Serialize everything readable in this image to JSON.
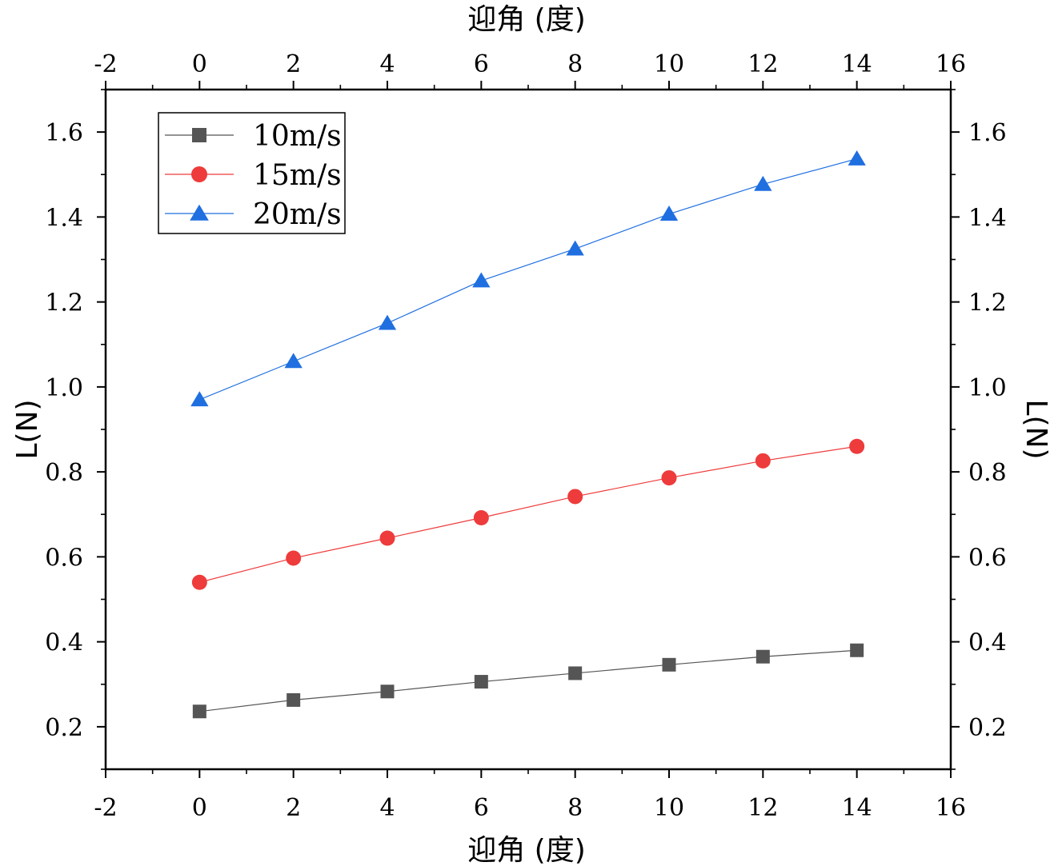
{
  "chart_data": {
    "type": "line",
    "title": "",
    "xlabel": "迎角 (度)",
    "ylabel": "L(N)",
    "xlim": [
      -2,
      16
    ],
    "ylim": [
      0.1,
      1.7
    ],
    "xticks": [
      -2,
      0,
      2,
      4,
      6,
      8,
      10,
      12,
      14,
      16
    ],
    "yticks": [
      0.2,
      0.4,
      0.6,
      0.8,
      1.0,
      1.2,
      1.4,
      1.6
    ],
    "ytick_labels": [
      "0.2",
      "0.4",
      "0.6",
      "0.8",
      "1.0",
      "1.2",
      "1.4",
      "1.6"
    ],
    "grid": false,
    "legend_position": "top-left",
    "x": [
      0,
      2,
      4,
      6,
      8,
      10,
      12,
      14
    ],
    "series": [
      {
        "name": "10m/s",
        "color": "#555555",
        "marker": "square",
        "values": [
          0.236,
          0.263,
          0.283,
          0.306,
          0.326,
          0.346,
          0.365,
          0.38
        ]
      },
      {
        "name": "15m/s",
        "color": "#ee3b3b",
        "marker": "circle",
        "values": [
          0.54,
          0.597,
          0.644,
          0.692,
          0.742,
          0.786,
          0.826,
          0.86
        ]
      },
      {
        "name": "20m/s",
        "color": "#1f6fe0",
        "marker": "triangle",
        "values": [
          0.97,
          1.06,
          1.15,
          1.25,
          1.325,
          1.407,
          1.477,
          1.537
        ]
      }
    ]
  }
}
